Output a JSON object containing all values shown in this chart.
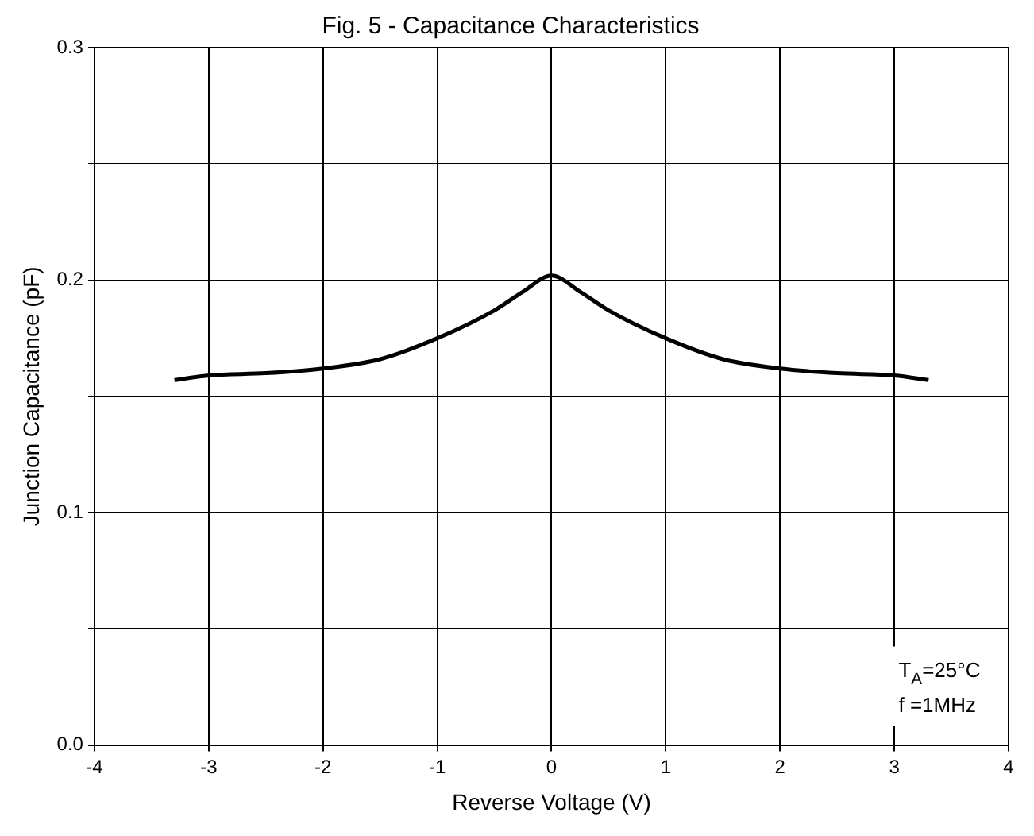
{
  "chart_data": {
    "type": "line",
    "title": "Fig. 5 - Capacitance Characteristics",
    "xlabel": "Reverse Voltage (V)",
    "ylabel": "Junction Capacitance (pF)",
    "annotations": [
      "T$_{A}$=25°C",
      "f =1MHz"
    ],
    "x": [
      -3.3,
      -3,
      -2.5,
      -2,
      -1.5,
      -1,
      -0.5,
      -0.25,
      0,
      0.25,
      0.5,
      1,
      1.5,
      2,
      2.5,
      3,
      3.3
    ],
    "series": [
      {
        "color": "#000000",
        "values": [
          0.157,
          0.159,
          0.16,
          0.162,
          0.166,
          0.175,
          0.187,
          0.195,
          0.202,
          0.195,
          0.187,
          0.175,
          0.166,
          0.162,
          0.16,
          0.159,
          0.157
        ]
      }
    ],
    "xlim": [
      -4,
      4
    ],
    "xticks": [
      -4,
      -3,
      -2,
      -1,
      0,
      1,
      2,
      3,
      4
    ],
    "ylim": [
      0,
      0.3
    ],
    "yticks": [
      {
        "value": 0,
        "label": "0.0"
      },
      {
        "value": 0.05,
        "label": null
      },
      {
        "value": 0.1,
        "label": "0.1"
      },
      {
        "value": 0.15,
        "label": null
      },
      {
        "value": 0.2,
        "label": "0.2"
      },
      {
        "value": 0.25,
        "label": null
      },
      {
        "value": 0.3,
        "label": "0.3"
      }
    ],
    "grid": true,
    "legend": false,
    "marker": "none",
    "line_style": "solid"
  }
}
